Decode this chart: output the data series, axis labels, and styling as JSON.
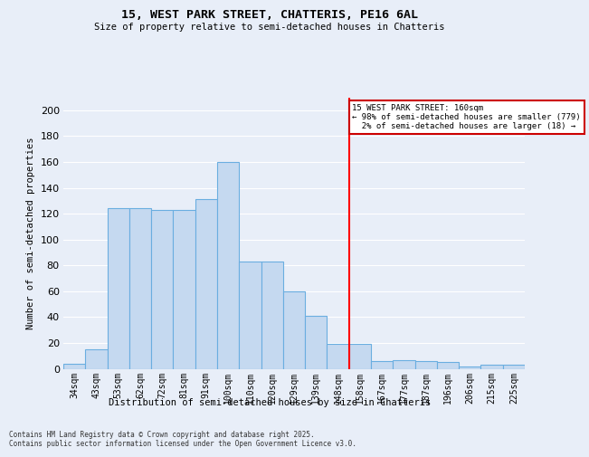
{
  "title1": "15, WEST PARK STREET, CHATTERIS, PE16 6AL",
  "title2": "Size of property relative to semi-detached houses in Chatteris",
  "xlabel": "Distribution of semi-detached houses by size in Chatteris",
  "ylabel": "Number of semi-detached properties",
  "bins": [
    "34sqm",
    "43sqm",
    "53sqm",
    "62sqm",
    "72sqm",
    "81sqm",
    "91sqm",
    "100sqm",
    "110sqm",
    "120sqm",
    "129sqm",
    "139sqm",
    "148sqm",
    "158sqm",
    "167sqm",
    "177sqm",
    "187sqm",
    "196sqm",
    "206sqm",
    "215sqm",
    "225sqm"
  ],
  "values": [
    4,
    15,
    124,
    124,
    123,
    123,
    131,
    160,
    83,
    83,
    60,
    41,
    19,
    19,
    6,
    7,
    6,
    5,
    2,
    3,
    3
  ],
  "bar_color": "#c5d9f0",
  "bar_edge_color": "#6aaee0",
  "annotation_title": "15 WEST PARK STREET: 160sqm",
  "annotation_line1": "← 98% of semi-detached houses are smaller (779)",
  "annotation_line2": "2% of semi-detached houses are larger (18) →",
  "annotation_box_color": "#cc0000",
  "vline_index": 13,
  "footer1": "Contains HM Land Registry data © Crown copyright and database right 2025.",
  "footer2": "Contains public sector information licensed under the Open Government Licence v3.0.",
  "background_color": "#e8eef8",
  "grid_color": "#ffffff",
  "ylim": [
    0,
    210
  ],
  "yticks": [
    0,
    20,
    40,
    60,
    80,
    100,
    120,
    140,
    160,
    180,
    200
  ]
}
